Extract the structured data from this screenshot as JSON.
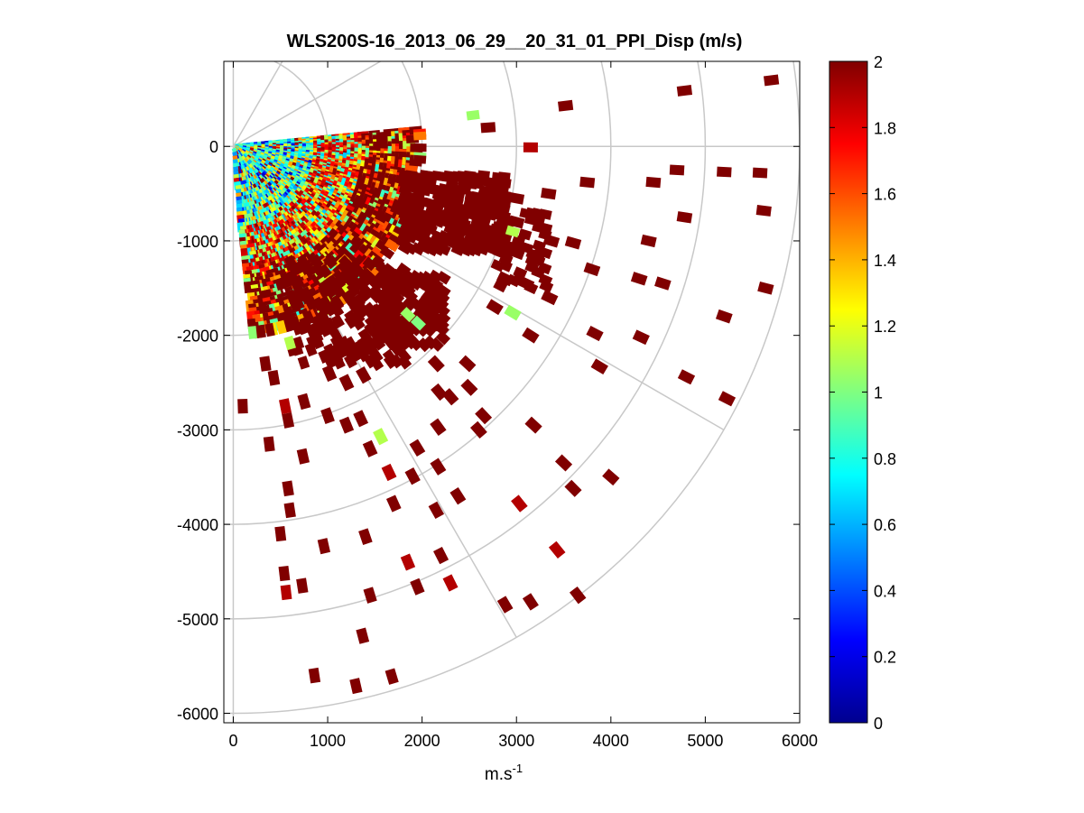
{
  "chart_data": {
    "type": "heatmap",
    "subtype": "polar PPI sector scan",
    "title": "WLS200S-16_2013_06_29__20_31_01_PPI_Disp (m/s)",
    "xlabel": "m.s",
    "xlabel_sup": "-1",
    "ylabel": "",
    "xlim": [
      -100,
      6000
    ],
    "ylim": [
      -6100,
      900
    ],
    "xticks": [
      0,
      1000,
      2000,
      3000,
      4000,
      5000,
      6000
    ],
    "yticks": [
      0,
      -1000,
      -2000,
      -3000,
      -4000,
      -5000,
      -6000
    ],
    "polar_grid": {
      "range_rings_m": [
        1000,
        2000,
        3000,
        4000,
        5000,
        6000
      ],
      "spokes_deg_math": [
        0,
        -30,
        -60,
        30,
        60
      ],
      "grid_color": "#c8c8c8"
    },
    "scan_sector": {
      "azimuth_start_deg_math": 5,
      "azimuth_end_deg_math": -85,
      "near_field_max_range_m": 2000
    },
    "colorbar": {
      "colormap": "jet",
      "clim": [
        0,
        2
      ],
      "ticks": [
        0,
        0.2,
        0.4,
        0.6,
        0.8,
        1,
        1.2,
        1.4,
        1.6,
        1.8,
        2
      ],
      "tick_labels": [
        "0",
        "0.2",
        "0.4",
        "0.6",
        "0.8",
        "1",
        "1.2",
        "1.4",
        "1.6",
        "1.8",
        "2"
      ]
    },
    "far_field_cells": [
      {
        "x": 4780,
        "y": 590,
        "v": 2
      },
      {
        "x": 5700,
        "y": 700,
        "v": 2
      },
      {
        "x": 3520,
        "y": 430,
        "v": 2
      },
      {
        "x": 2700,
        "y": 200,
        "v": 2
      },
      {
        "x": 3150,
        "y": -10,
        "v": 1.9
      },
      {
        "x": 3750,
        "y": -380,
        "v": 2
      },
      {
        "x": 4450,
        "y": -380,
        "v": 2
      },
      {
        "x": 4700,
        "y": -250,
        "v": 2
      },
      {
        "x": 5200,
        "y": -270,
        "v": 2
      },
      {
        "x": 5580,
        "y": -280,
        "v": 2
      },
      {
        "x": 5620,
        "y": -680,
        "v": 2
      },
      {
        "x": 4780,
        "y": -750,
        "v": 2
      },
      {
        "x": 4400,
        "y": -1000,
        "v": 2
      },
      {
        "x": 3600,
        "y": -1020,
        "v": 2
      },
      {
        "x": 3370,
        "y": -1000,
        "v": 2
      },
      {
        "x": 3220,
        "y": -780,
        "v": 2
      },
      {
        "x": 3340,
        "y": -500,
        "v": 2
      },
      {
        "x": 3000,
        "y": -550,
        "v": 2
      },
      {
        "x": 3000,
        "y": -800,
        "v": 2
      },
      {
        "x": 2900,
        "y": -1100,
        "v": 2
      },
      {
        "x": 2880,
        "y": -1400,
        "v": 2
      },
      {
        "x": 2770,
        "y": -1700,
        "v": 2
      },
      {
        "x": 3100,
        "y": -1450,
        "v": 2
      },
      {
        "x": 3350,
        "y": -1600,
        "v": 2
      },
      {
        "x": 3800,
        "y": -1300,
        "v": 2
      },
      {
        "x": 4300,
        "y": -1400,
        "v": 2
      },
      {
        "x": 4550,
        "y": -1450,
        "v": 2
      },
      {
        "x": 5640,
        "y": -1500,
        "v": 2
      },
      {
        "x": 5200,
        "y": -1800,
        "v": 2
      },
      {
        "x": 4320,
        "y": -2020,
        "v": 2
      },
      {
        "x": 3830,
        "y": -1980,
        "v": 2
      },
      {
        "x": 3150,
        "y": -2000,
        "v": 2
      },
      {
        "x": 2960,
        "y": -1760,
        "v": 1.05
      },
      {
        "x": 3880,
        "y": -2330,
        "v": 2
      },
      {
        "x": 4800,
        "y": -2440,
        "v": 2
      },
      {
        "x": 5230,
        "y": -2670,
        "v": 2
      },
      {
        "x": 2480,
        "y": -2300,
        "v": 2
      },
      {
        "x": 2150,
        "y": -2300,
        "v": 2
      },
      {
        "x": 2180,
        "y": -2600,
        "v": 2
      },
      {
        "x": 2300,
        "y": -2650,
        "v": 2
      },
      {
        "x": 2500,
        "y": -2550,
        "v": 2
      },
      {
        "x": 2650,
        "y": -2850,
        "v": 2
      },
      {
        "x": 2600,
        "y": -3000,
        "v": 2
      },
      {
        "x": 3180,
        "y": -2950,
        "v": 2
      },
      {
        "x": 2170,
        "y": -2970,
        "v": 2
      },
      {
        "x": 1950,
        "y": -3190,
        "v": 2
      },
      {
        "x": 2170,
        "y": -3390,
        "v": 2
      },
      {
        "x": 1900,
        "y": -3490,
        "v": 2
      },
      {
        "x": 2380,
        "y": -3700,
        "v": 2
      },
      {
        "x": 2150,
        "y": -3850,
        "v": 2
      },
      {
        "x": 1700,
        "y": -3780,
        "v": 2
      },
      {
        "x": 1650,
        "y": -3450,
        "v": 1.9
      },
      {
        "x": 1560,
        "y": -3070,
        "v": 1.1
      },
      {
        "x": 1450,
        "y": -3200,
        "v": 2
      },
      {
        "x": 1350,
        "y": -2880,
        "v": 2
      },
      {
        "x": 1200,
        "y": -2950,
        "v": 2
      },
      {
        "x": 1000,
        "y": -2850,
        "v": 2
      },
      {
        "x": 750,
        "y": -2700,
        "v": 2
      },
      {
        "x": 550,
        "y": -2750,
        "v": 1.9
      },
      {
        "x": 580,
        "y": -2900,
        "v": 2
      },
      {
        "x": 100,
        "y": -2750,
        "v": 2
      },
      {
        "x": 380,
        "y": -3150,
        "v": 2
      },
      {
        "x": 740,
        "y": -3280,
        "v": 2
      },
      {
        "x": 580,
        "y": -3620,
        "v": 2
      },
      {
        "x": 600,
        "y": -3850,
        "v": 2
      },
      {
        "x": 500,
        "y": -4100,
        "v": 2
      },
      {
        "x": 960,
        "y": -4230,
        "v": 2
      },
      {
        "x": 1400,
        "y": -4130,
        "v": 2
      },
      {
        "x": 1850,
        "y": -4400,
        "v": 1.9
      },
      {
        "x": 2200,
        "y": -4330,
        "v": 2
      },
      {
        "x": 2300,
        "y": -4620,
        "v": 1.9
      },
      {
        "x": 1950,
        "y": -4660,
        "v": 2
      },
      {
        "x": 1450,
        "y": -4750,
        "v": 2
      },
      {
        "x": 540,
        "y": -4520,
        "v": 2
      },
      {
        "x": 730,
        "y": -4650,
        "v": 2
      },
      {
        "x": 560,
        "y": -4720,
        "v": 1.9
      },
      {
        "x": 3030,
        "y": -3780,
        "v": 1.9
      },
      {
        "x": 3430,
        "y": -4270,
        "v": 1.9
      },
      {
        "x": 3600,
        "y": -3620,
        "v": 2
      },
      {
        "x": 4000,
        "y": -3500,
        "v": 2
      },
      {
        "x": 3500,
        "y": -3350,
        "v": 2
      },
      {
        "x": 3650,
        "y": -4750,
        "v": 2
      },
      {
        "x": 3150,
        "y": -4820,
        "v": 2
      },
      {
        "x": 2880,
        "y": -4850,
        "v": 2
      },
      {
        "x": 1370,
        "y": -5180,
        "v": 2
      },
      {
        "x": 860,
        "y": -5600,
        "v": 2
      },
      {
        "x": 1300,
        "y": -5710,
        "v": 2
      },
      {
        "x": 1680,
        "y": -5610,
        "v": 2
      },
      {
        "x": 1200,
        "y": -2500,
        "v": 2
      },
      {
        "x": 1380,
        "y": -2420,
        "v": 2
      },
      {
        "x": 1020,
        "y": -2400,
        "v": 2
      },
      {
        "x": 430,
        "y": -2450,
        "v": 2
      },
      {
        "x": 340,
        "y": -2300,
        "v": 2
      },
      {
        "x": 1020,
        "y": -1900,
        "v": 2
      },
      {
        "x": 1160,
        "y": -2150,
        "v": 2
      }
    ],
    "dense_clusters": [
      {
        "x_range": [
          1800,
          2900
        ],
        "y_range": [
          -1100,
          -300
        ],
        "v": 2,
        "density": 0.85
      },
      {
        "x_range": [
          1500,
          2200
        ],
        "y_range": [
          -2100,
          -1400
        ],
        "v": 2,
        "density": 0.7
      },
      {
        "x_range": [
          600,
          1800
        ],
        "y_range": [
          -2300,
          -1200
        ],
        "v": 2,
        "density": 0.45
      },
      {
        "x_range": [
          2800,
          3300
        ],
        "y_range": [
          -1500,
          -700
        ],
        "v": 2,
        "density": 0.35
      }
    ],
    "green_highlights": [
      {
        "x": 2540,
        "y": 330,
        "v": 1.05
      },
      {
        "x": 2960,
        "y": -900,
        "v": 1.1
      },
      {
        "x": 1850,
        "y": -1780,
        "v": 1.05
      },
      {
        "x": 1960,
        "y": -1870,
        "v": 1.0
      },
      {
        "x": 600,
        "y": -2080,
        "v": 1.1
      }
    ]
  }
}
